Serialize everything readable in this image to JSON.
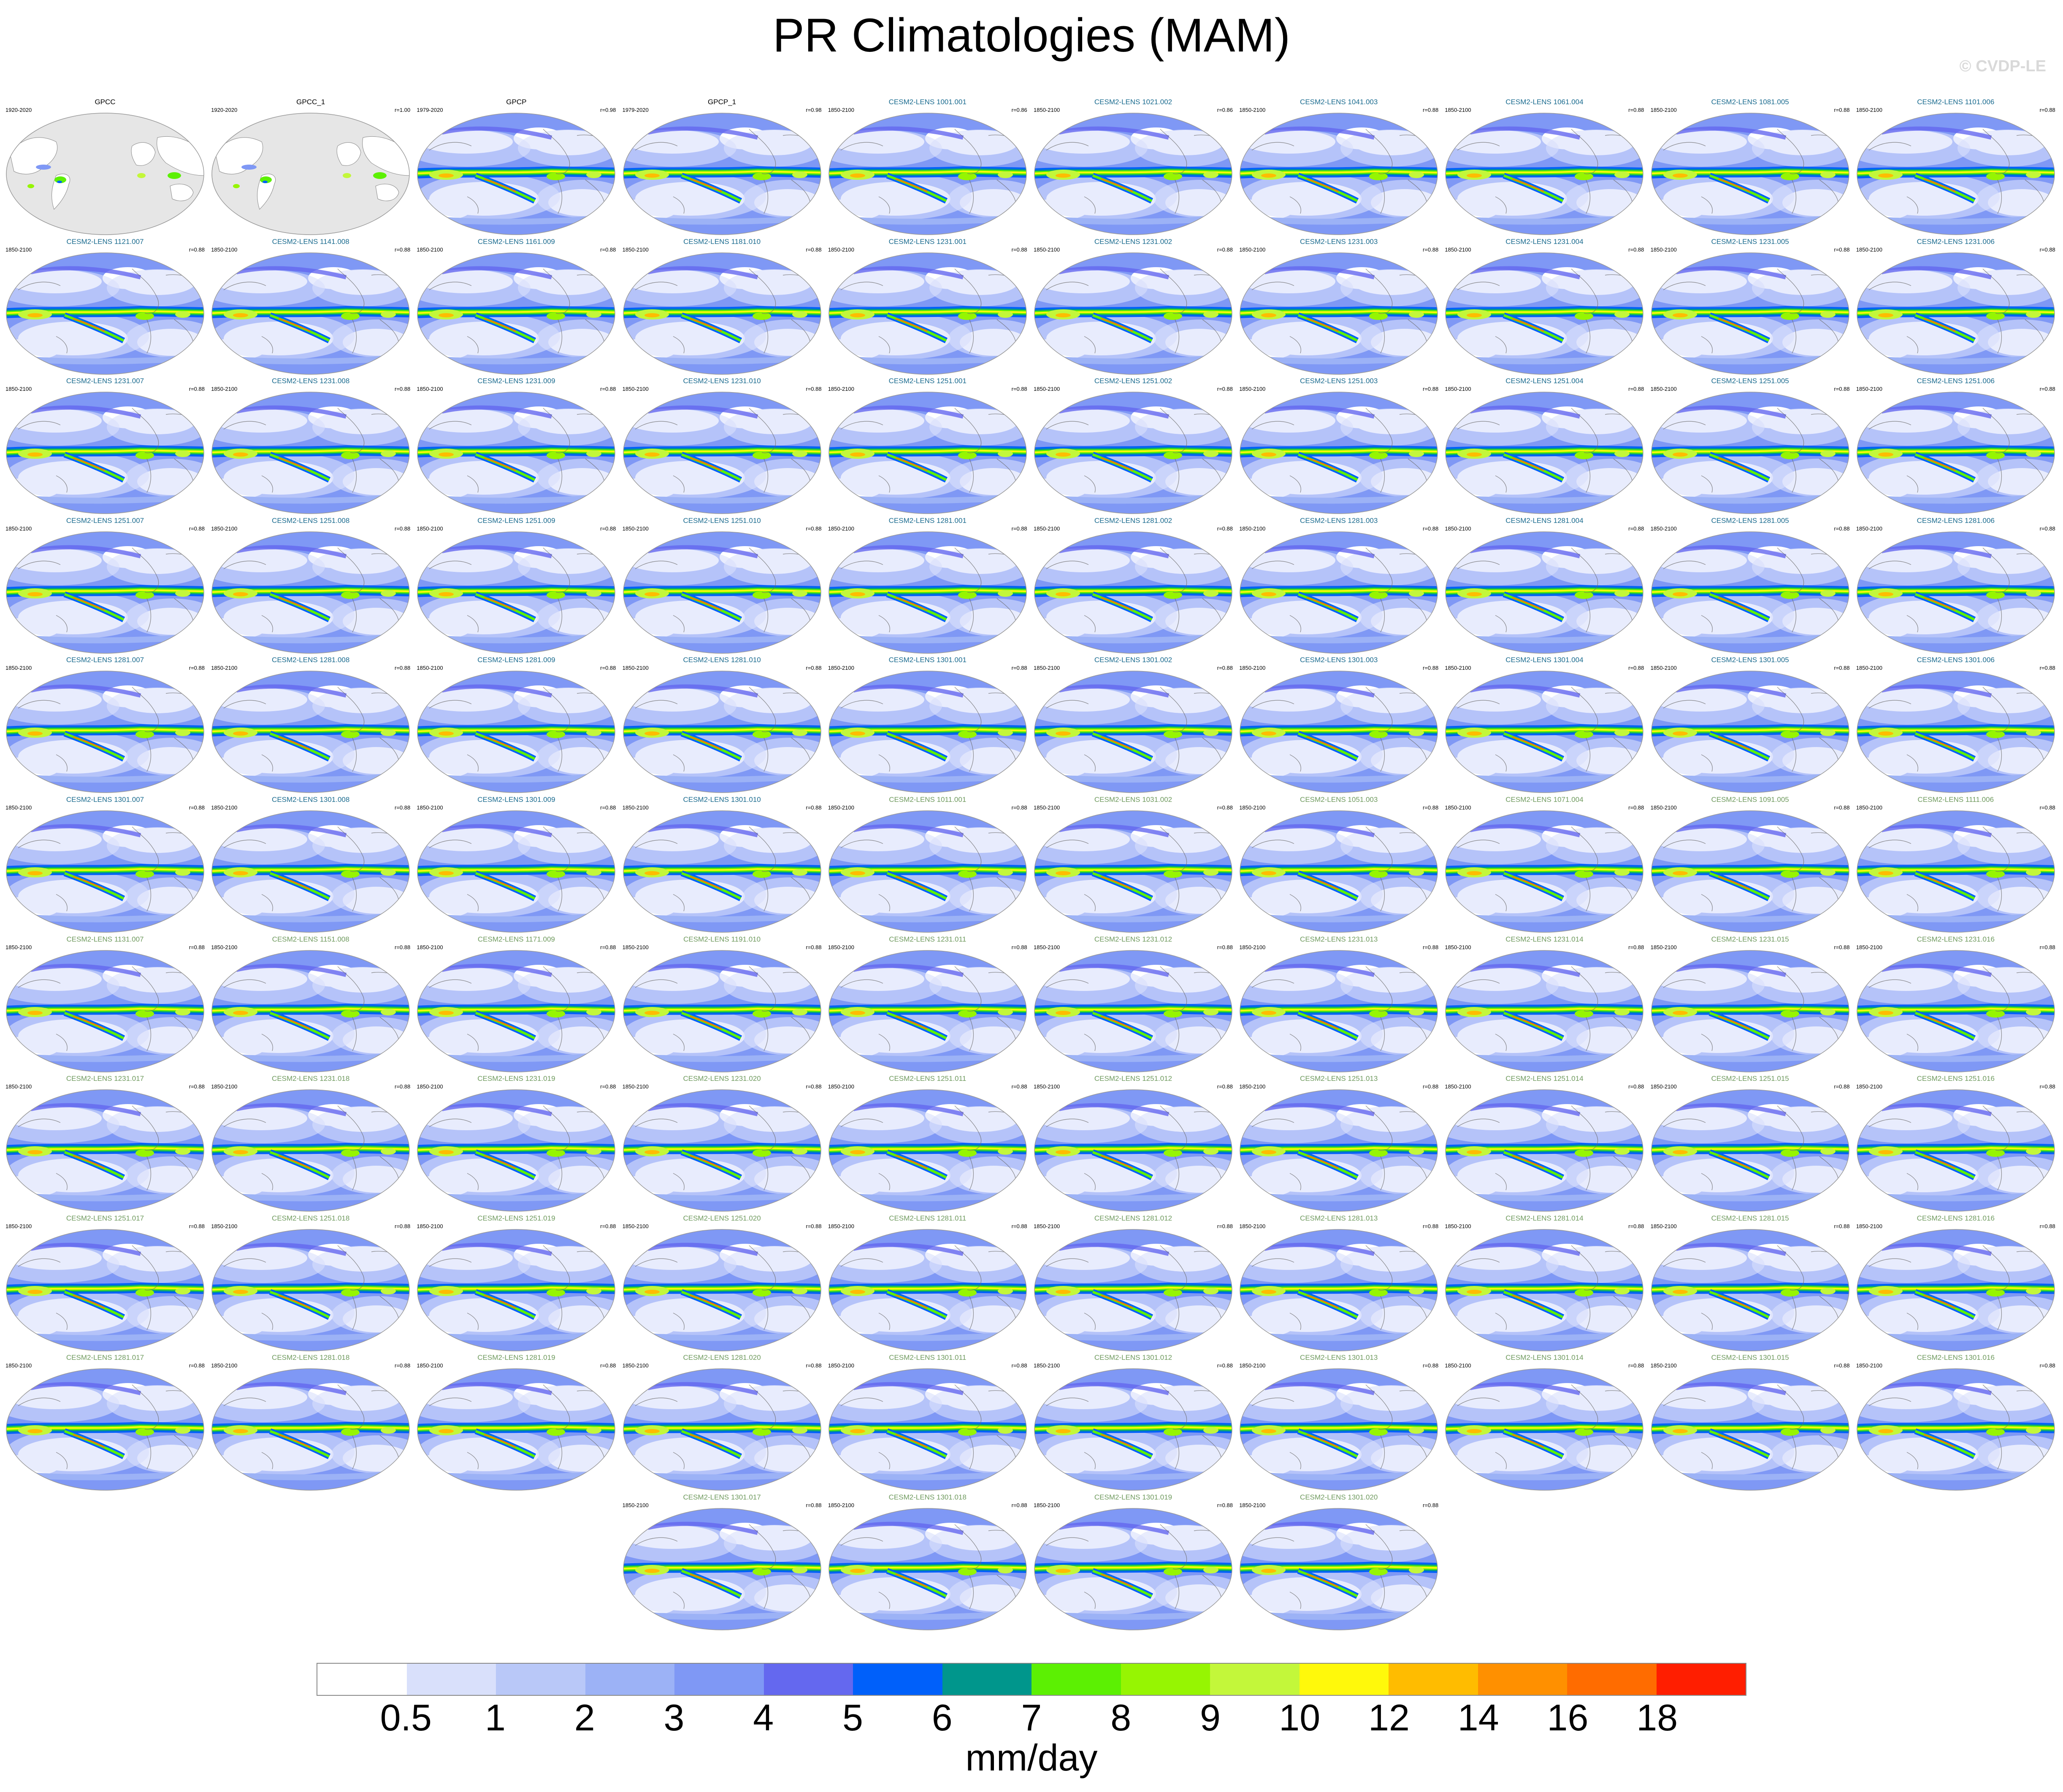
{
  "title": "PR Climatologies (MAM)",
  "watermark": "© CVDP-LE",
  "chart_data": {
    "type": "heatmap",
    "title": "PR Climatologies (MAM)",
    "units": "mm/day",
    "colorbar": {
      "ticks": [
        "0.5",
        "1",
        "2",
        "3",
        "4",
        "5",
        "6",
        "7",
        "8",
        "9",
        "10",
        "12",
        "14",
        "16",
        "18"
      ],
      "colors": [
        "#ffffff",
        "#d9e0fb",
        "#b9c8f8",
        "#9cb2f6",
        "#7f98f5",
        "#6468ef",
        "#0060fa",
        "#00968c",
        "#5cf003",
        "#96f502",
        "#c3f73a",
        "#fff90b",
        "#ffbc00",
        "#ff9000",
        "#ff6c00",
        "#ff1e00"
      ]
    },
    "panels": [
      {
        "title": "GPCC",
        "period": "1920-2020",
        "stat": "",
        "kind": "obs-land",
        "title_color": "#000000"
      },
      {
        "title": "GPCC_1",
        "period": "1920-2020",
        "stat": "r=1.00",
        "kind": "obs-land",
        "title_color": "#000000"
      },
      {
        "title": "GPCP",
        "period": "1979-2020",
        "stat": "r=0.98",
        "kind": "obs",
        "title_color": "#000000"
      },
      {
        "title": "GPCP_1",
        "period": "1979-2020",
        "stat": "r=0.98",
        "kind": "obs",
        "title_color": "#000000"
      },
      {
        "title": "CESM2-LENS 1001.001",
        "period": "1850-2100",
        "stat": "r=0.86",
        "kind": "model",
        "title_color": "#1a6b8f"
      },
      {
        "title": "CESM2-LENS 1021.002",
        "period": "1850-2100",
        "stat": "r=0.86",
        "kind": "model",
        "title_color": "#1a6b8f"
      },
      {
        "title": "CESM2-LENS 1041.003",
        "period": "1850-2100",
        "stat": "r=0.88",
        "kind": "model",
        "title_color": "#1a6b8f"
      },
      {
        "title": "CESM2-LENS 1061.004",
        "period": "1850-2100",
        "stat": "r=0.88",
        "kind": "model",
        "title_color": "#1a6b8f"
      },
      {
        "title": "CESM2-LENS 1081.005",
        "period": "1850-2100",
        "stat": "r=0.88",
        "kind": "model",
        "title_color": "#1a6b8f"
      },
      {
        "title": "CESM2-LENS 1101.006",
        "period": "1850-2100",
        "stat": "r=0.88",
        "kind": "model",
        "title_color": "#1a6b8f"
      },
      {
        "title": "CESM2-LENS 1121.007",
        "period": "1850-2100",
        "stat": "r=0.88",
        "kind": "model",
        "title_color": "#1a6b8f"
      },
      {
        "title": "CESM2-LENS 1141.008",
        "period": "1850-2100",
        "stat": "r=0.88",
        "kind": "model",
        "title_color": "#1a6b8f"
      },
      {
        "title": "CESM2-LENS 1161.009",
        "period": "1850-2100",
        "stat": "r=0.88",
        "kind": "model",
        "title_color": "#1a6b8f"
      },
      {
        "title": "CESM2-LENS 1181.010",
        "period": "1850-2100",
        "stat": "r=0.88",
        "kind": "model",
        "title_color": "#1a6b8f"
      },
      {
        "title": "CESM2-LENS 1231.001",
        "period": "1850-2100",
        "stat": "r=0.88",
        "kind": "model",
        "title_color": "#1a6b8f"
      },
      {
        "title": "CESM2-LENS 1231.002",
        "period": "1850-2100",
        "stat": "r=0.88",
        "kind": "model",
        "title_color": "#1a6b8f"
      },
      {
        "title": "CESM2-LENS 1231.003",
        "period": "1850-2100",
        "stat": "r=0.88",
        "kind": "model",
        "title_color": "#1a6b8f"
      },
      {
        "title": "CESM2-LENS 1231.004",
        "period": "1850-2100",
        "stat": "r=0.88",
        "kind": "model",
        "title_color": "#1a6b8f"
      },
      {
        "title": "CESM2-LENS 1231.005",
        "period": "1850-2100",
        "stat": "r=0.88",
        "kind": "model",
        "title_color": "#1a6b8f"
      },
      {
        "title": "CESM2-LENS 1231.006",
        "period": "1850-2100",
        "stat": "r=0.88",
        "kind": "model",
        "title_color": "#1a6b8f"
      },
      {
        "title": "CESM2-LENS 1231.007",
        "period": "1850-2100",
        "stat": "r=0.88",
        "kind": "model",
        "title_color": "#1a6b8f"
      },
      {
        "title": "CESM2-LENS 1231.008",
        "period": "1850-2100",
        "stat": "r=0.88",
        "kind": "model",
        "title_color": "#1a6b8f"
      },
      {
        "title": "CESM2-LENS 1231.009",
        "period": "1850-2100",
        "stat": "r=0.88",
        "kind": "model",
        "title_color": "#1a6b8f"
      },
      {
        "title": "CESM2-LENS 1231.010",
        "period": "1850-2100",
        "stat": "r=0.88",
        "kind": "model",
        "title_color": "#1a6b8f"
      },
      {
        "title": "CESM2-LENS 1251.001",
        "period": "1850-2100",
        "stat": "r=0.88",
        "kind": "model",
        "title_color": "#1a6b8f"
      },
      {
        "title": "CESM2-LENS 1251.002",
        "period": "1850-2100",
        "stat": "r=0.88",
        "kind": "model",
        "title_color": "#1a6b8f"
      },
      {
        "title": "CESM2-LENS 1251.003",
        "period": "1850-2100",
        "stat": "r=0.88",
        "kind": "model",
        "title_color": "#1a6b8f"
      },
      {
        "title": "CESM2-LENS 1251.004",
        "period": "1850-2100",
        "stat": "r=0.88",
        "kind": "model",
        "title_color": "#1a6b8f"
      },
      {
        "title": "CESM2-LENS 1251.005",
        "period": "1850-2100",
        "stat": "r=0.88",
        "kind": "model",
        "title_color": "#1a6b8f"
      },
      {
        "title": "CESM2-LENS 1251.006",
        "period": "1850-2100",
        "stat": "r=0.88",
        "kind": "model",
        "title_color": "#1a6b8f"
      },
      {
        "title": "CESM2-LENS 1251.007",
        "period": "1850-2100",
        "stat": "r=0.88",
        "kind": "model",
        "title_color": "#1a6b8f"
      },
      {
        "title": "CESM2-LENS 1251.008",
        "period": "1850-2100",
        "stat": "r=0.88",
        "kind": "model",
        "title_color": "#1a6b8f"
      },
      {
        "title": "CESM2-LENS 1251.009",
        "period": "1850-2100",
        "stat": "r=0.88",
        "kind": "model",
        "title_color": "#1a6b8f"
      },
      {
        "title": "CESM2-LENS 1251.010",
        "period": "1850-2100",
        "stat": "r=0.88",
        "kind": "model",
        "title_color": "#1a6b8f"
      },
      {
        "title": "CESM2-LENS 1281.001",
        "period": "1850-2100",
        "stat": "r=0.88",
        "kind": "model",
        "title_color": "#1a6b8f"
      },
      {
        "title": "CESM2-LENS 1281.002",
        "period": "1850-2100",
        "stat": "r=0.88",
        "kind": "model",
        "title_color": "#1a6b8f"
      },
      {
        "title": "CESM2-LENS 1281.003",
        "period": "1850-2100",
        "stat": "r=0.88",
        "kind": "model",
        "title_color": "#1a6b8f"
      },
      {
        "title": "CESM2-LENS 1281.004",
        "period": "1850-2100",
        "stat": "r=0.88",
        "kind": "model",
        "title_color": "#1a6b8f"
      },
      {
        "title": "CESM2-LENS 1281.005",
        "period": "1850-2100",
        "stat": "r=0.88",
        "kind": "model",
        "title_color": "#1a6b8f"
      },
      {
        "title": "CESM2-LENS 1281.006",
        "period": "1850-2100",
        "stat": "r=0.88",
        "kind": "model",
        "title_color": "#1a6b8f"
      },
      {
        "title": "CESM2-LENS 1281.007",
        "period": "1850-2100",
        "stat": "r=0.88",
        "kind": "model",
        "title_color": "#1a6b8f"
      },
      {
        "title": "CESM2-LENS 1281.008",
        "period": "1850-2100",
        "stat": "r=0.88",
        "kind": "model",
        "title_color": "#1a6b8f"
      },
      {
        "title": "CESM2-LENS 1281.009",
        "period": "1850-2100",
        "stat": "r=0.88",
        "kind": "model",
        "title_color": "#1a6b8f"
      },
      {
        "title": "CESM2-LENS 1281.010",
        "period": "1850-2100",
        "stat": "r=0.88",
        "kind": "model",
        "title_color": "#1a6b8f"
      },
      {
        "title": "CESM2-LENS 1301.001",
        "period": "1850-2100",
        "stat": "r=0.88",
        "kind": "model",
        "title_color": "#1a6b8f"
      },
      {
        "title": "CESM2-LENS 1301.002",
        "period": "1850-2100",
        "stat": "r=0.88",
        "kind": "model",
        "title_color": "#1a6b8f"
      },
      {
        "title": "CESM2-LENS 1301.003",
        "period": "1850-2100",
        "stat": "r=0.88",
        "kind": "model",
        "title_color": "#1a6b8f"
      },
      {
        "title": "CESM2-LENS 1301.004",
        "period": "1850-2100",
        "stat": "r=0.88",
        "kind": "model",
        "title_color": "#1a6b8f"
      },
      {
        "title": "CESM2-LENS 1301.005",
        "period": "1850-2100",
        "stat": "r=0.88",
        "kind": "model",
        "title_color": "#1a6b8f"
      },
      {
        "title": "CESM2-LENS 1301.006",
        "period": "1850-2100",
        "stat": "r=0.88",
        "kind": "model",
        "title_color": "#1a6b8f"
      },
      {
        "title": "CESM2-LENS 1301.007",
        "period": "1850-2100",
        "stat": "r=0.88",
        "kind": "model",
        "title_color": "#1a6b8f"
      },
      {
        "title": "CESM2-LENS 1301.008",
        "period": "1850-2100",
        "stat": "r=0.88",
        "kind": "model",
        "title_color": "#1a6b8f"
      },
      {
        "title": "CESM2-LENS 1301.009",
        "period": "1850-2100",
        "stat": "r=0.88",
        "kind": "model",
        "title_color": "#1a6b8f"
      },
      {
        "title": "CESM2-LENS 1301.010",
        "period": "1850-2100",
        "stat": "r=0.88",
        "kind": "model",
        "title_color": "#1a6b8f"
      },
      {
        "title": "CESM2-LENS 1011.001",
        "period": "1850-2100",
        "stat": "r=0.88",
        "kind": "model",
        "title_color": "#6f9a5e"
      },
      {
        "title": "CESM2-LENS 1031.002",
        "period": "1850-2100",
        "stat": "r=0.88",
        "kind": "model",
        "title_color": "#6f9a5e"
      },
      {
        "title": "CESM2-LENS 1051.003",
        "period": "1850-2100",
        "stat": "r=0.88",
        "kind": "model",
        "title_color": "#6f9a5e"
      },
      {
        "title": "CESM2-LENS 1071.004",
        "period": "1850-2100",
        "stat": "r=0.88",
        "kind": "model",
        "title_color": "#6f9a5e"
      },
      {
        "title": "CESM2-LENS 1091.005",
        "period": "1850-2100",
        "stat": "r=0.88",
        "kind": "model",
        "title_color": "#6f9a5e"
      },
      {
        "title": "CESM2-LENS 1111.006",
        "period": "1850-2100",
        "stat": "r=0.88",
        "kind": "model",
        "title_color": "#6f9a5e"
      },
      {
        "title": "CESM2-LENS 1131.007",
        "period": "1850-2100",
        "stat": "r=0.88",
        "kind": "model",
        "title_color": "#6f9a5e"
      },
      {
        "title": "CESM2-LENS 1151.008",
        "period": "1850-2100",
        "stat": "r=0.88",
        "kind": "model",
        "title_color": "#6f9a5e"
      },
      {
        "title": "CESM2-LENS 1171.009",
        "period": "1850-2100",
        "stat": "r=0.88",
        "kind": "model",
        "title_color": "#6f9a5e"
      },
      {
        "title": "CESM2-LENS 1191.010",
        "period": "1850-2100",
        "stat": "r=0.88",
        "kind": "model",
        "title_color": "#6f9a5e"
      },
      {
        "title": "CESM2-LENS 1231.011",
        "period": "1850-2100",
        "stat": "r=0.88",
        "kind": "model",
        "title_color": "#6f9a5e"
      },
      {
        "title": "CESM2-LENS 1231.012",
        "period": "1850-2100",
        "stat": "r=0.88",
        "kind": "model",
        "title_color": "#6f9a5e"
      },
      {
        "title": "CESM2-LENS 1231.013",
        "period": "1850-2100",
        "stat": "r=0.88",
        "kind": "model",
        "title_color": "#6f9a5e"
      },
      {
        "title": "CESM2-LENS 1231.014",
        "period": "1850-2100",
        "stat": "r=0.88",
        "kind": "model",
        "title_color": "#6f9a5e"
      },
      {
        "title": "CESM2-LENS 1231.015",
        "period": "1850-2100",
        "stat": "r=0.88",
        "kind": "model",
        "title_color": "#6f9a5e"
      },
      {
        "title": "CESM2-LENS 1231.016",
        "period": "1850-2100",
        "stat": "r=0.88",
        "kind": "model",
        "title_color": "#6f9a5e"
      },
      {
        "title": "CESM2-LENS 1231.017",
        "period": "1850-2100",
        "stat": "r=0.88",
        "kind": "model",
        "title_color": "#6f9a5e"
      },
      {
        "title": "CESM2-LENS 1231.018",
        "period": "1850-2100",
        "stat": "r=0.88",
        "kind": "model",
        "title_color": "#6f9a5e"
      },
      {
        "title": "CESM2-LENS 1231.019",
        "period": "1850-2100",
        "stat": "r=0.88",
        "kind": "model",
        "title_color": "#6f9a5e"
      },
      {
        "title": "CESM2-LENS 1231.020",
        "period": "1850-2100",
        "stat": "r=0.88",
        "kind": "model",
        "title_color": "#6f9a5e"
      },
      {
        "title": "CESM2-LENS 1251.011",
        "period": "1850-2100",
        "stat": "r=0.88",
        "kind": "model",
        "title_color": "#6f9a5e"
      },
      {
        "title": "CESM2-LENS 1251.012",
        "period": "1850-2100",
        "stat": "r=0.88",
        "kind": "model",
        "title_color": "#6f9a5e"
      },
      {
        "title": "CESM2-LENS 1251.013",
        "period": "1850-2100",
        "stat": "r=0.88",
        "kind": "model",
        "title_color": "#6f9a5e"
      },
      {
        "title": "CESM2-LENS 1251.014",
        "period": "1850-2100",
        "stat": "r=0.88",
        "kind": "model",
        "title_color": "#6f9a5e"
      },
      {
        "title": "CESM2-LENS 1251.015",
        "period": "1850-2100",
        "stat": "r=0.88",
        "kind": "model",
        "title_color": "#6f9a5e"
      },
      {
        "title": "CESM2-LENS 1251.016",
        "period": "1850-2100",
        "stat": "r=0.88",
        "kind": "model",
        "title_color": "#6f9a5e"
      },
      {
        "title": "CESM2-LENS 1251.017",
        "period": "1850-2100",
        "stat": "r=0.88",
        "kind": "model",
        "title_color": "#6f9a5e"
      },
      {
        "title": "CESM2-LENS 1251.018",
        "period": "1850-2100",
        "stat": "r=0.88",
        "kind": "model",
        "title_color": "#6f9a5e"
      },
      {
        "title": "CESM2-LENS 1251.019",
        "period": "1850-2100",
        "stat": "r=0.88",
        "kind": "model",
        "title_color": "#6f9a5e"
      },
      {
        "title": "CESM2-LENS 1251.020",
        "period": "1850-2100",
        "stat": "r=0.88",
        "kind": "model",
        "title_color": "#6f9a5e"
      },
      {
        "title": "CESM2-LENS 1281.011",
        "period": "1850-2100",
        "stat": "r=0.88",
        "kind": "model",
        "title_color": "#6f9a5e"
      },
      {
        "title": "CESM2-LENS 1281.012",
        "period": "1850-2100",
        "stat": "r=0.88",
        "kind": "model",
        "title_color": "#6f9a5e"
      },
      {
        "title": "CESM2-LENS 1281.013",
        "period": "1850-2100",
        "stat": "r=0.88",
        "kind": "model",
        "title_color": "#6f9a5e"
      },
      {
        "title": "CESM2-LENS 1281.014",
        "period": "1850-2100",
        "stat": "r=0.88",
        "kind": "model",
        "title_color": "#6f9a5e"
      },
      {
        "title": "CESM2-LENS 1281.015",
        "period": "1850-2100",
        "stat": "r=0.88",
        "kind": "model",
        "title_color": "#6f9a5e"
      },
      {
        "title": "CESM2-LENS 1281.016",
        "period": "1850-2100",
        "stat": "r=0.88",
        "kind": "model",
        "title_color": "#6f9a5e"
      },
      {
        "title": "CESM2-LENS 1281.017",
        "period": "1850-2100",
        "stat": "r=0.88",
        "kind": "model",
        "title_color": "#6f9a5e"
      },
      {
        "title": "CESM2-LENS 1281.018",
        "period": "1850-2100",
        "stat": "r=0.88",
        "kind": "model",
        "title_color": "#6f9a5e"
      },
      {
        "title": "CESM2-LENS 1281.019",
        "period": "1850-2100",
        "stat": "r=0.88",
        "kind": "model",
        "title_color": "#6f9a5e"
      },
      {
        "title": "CESM2-LENS 1281.020",
        "period": "1850-2100",
        "stat": "r=0.88",
        "kind": "model",
        "title_color": "#6f9a5e"
      },
      {
        "title": "CESM2-LENS 1301.011",
        "period": "1850-2100",
        "stat": "r=0.88",
        "kind": "model",
        "title_color": "#6f9a5e"
      },
      {
        "title": "CESM2-LENS 1301.012",
        "period": "1850-2100",
        "stat": "r=0.88",
        "kind": "model",
        "title_color": "#6f9a5e"
      },
      {
        "title": "CESM2-LENS 1301.013",
        "period": "1850-2100",
        "stat": "r=0.88",
        "kind": "model",
        "title_color": "#6f9a5e"
      },
      {
        "title": "CESM2-LENS 1301.014",
        "period": "1850-2100",
        "stat": "r=0.88",
        "kind": "model",
        "title_color": "#6f9a5e"
      },
      {
        "title": "CESM2-LENS 1301.015",
        "period": "1850-2100",
        "stat": "r=0.88",
        "kind": "model",
        "title_color": "#6f9a5e"
      },
      {
        "title": "CESM2-LENS 1301.016",
        "period": "1850-2100",
        "stat": "r=0.88",
        "kind": "model",
        "title_color": "#6f9a5e"
      },
      {
        "title": "CESM2-LENS 1301.017",
        "period": "1850-2100",
        "stat": "r=0.88",
        "kind": "model",
        "title_color": "#6f9a5e"
      },
      {
        "title": "CESM2-LENS 1301.018",
        "period": "1850-2100",
        "stat": "r=0.88",
        "kind": "model",
        "title_color": "#6f9a5e"
      },
      {
        "title": "CESM2-LENS 1301.019",
        "period": "1850-2100",
        "stat": "r=0.88",
        "kind": "model",
        "title_color": "#6f9a5e"
      },
      {
        "title": "CESM2-LENS 1301.020",
        "period": "1850-2100",
        "stat": "r=0.88",
        "kind": "model",
        "title_color": "#6f9a5e"
      }
    ]
  }
}
